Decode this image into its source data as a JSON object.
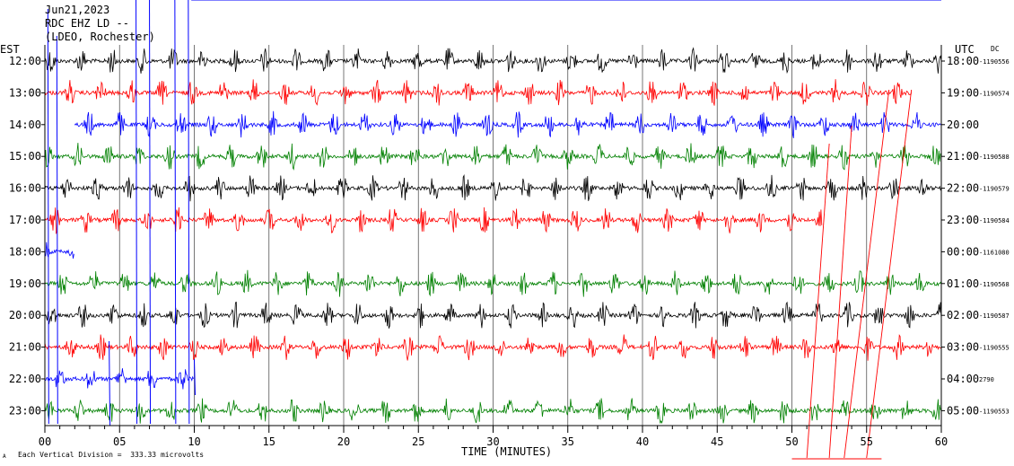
{
  "header": {
    "date": "Jun21,2023",
    "station": "RDC EHZ LD --",
    "network": "(LDEO, Rochester)"
  },
  "left_axis_title": "EST",
  "right_axis_title": "UTC",
  "dc_label": "DC",
  "footer": {
    "scale_note": "Each Vertical Division =  333.33 microvolts",
    "corner_mark": "A"
  },
  "chart_data": {
    "type": "line",
    "title": "",
    "xlabel": "TIME (MINUTES)",
    "ylabel": "",
    "xlim": [
      0,
      60
    ],
    "x_ticks": [
      "00",
      "05",
      "10",
      "15",
      "20",
      "25",
      "30",
      "35",
      "40",
      "45",
      "50",
      "55",
      "60"
    ],
    "grid": true,
    "series": [
      {
        "est": "12:00",
        "utc": "18:00",
        "dc": "-1190556",
        "color": "#000000",
        "data_start_min": 0,
        "data_end_min": 60
      },
      {
        "est": "13:00",
        "utc": "19:00",
        "dc": "-1190574",
        "color": "#ff0000",
        "data_start_min": 0,
        "data_end_min": 58
      },
      {
        "est": "14:00",
        "utc": "20:00",
        "dc": "",
        "color": "#0000ff",
        "data_start_min": 2,
        "data_end_min": 60
      },
      {
        "est": "15:00",
        "utc": "21:00",
        "dc": "-1190588",
        "color": "#008000",
        "data_start_min": 0,
        "data_end_min": 60
      },
      {
        "est": "16:00",
        "utc": "22:00",
        "dc": "-1190579",
        "color": "#000000",
        "data_start_min": 0,
        "data_end_min": 60
      },
      {
        "est": "17:00",
        "utc": "23:00",
        "dc": "-1190584",
        "color": "#ff0000",
        "data_start_min": 0,
        "data_end_min": 52
      },
      {
        "est": "18:00",
        "utc": "00:00",
        "dc": "-1161080",
        "color": "#0000ff",
        "data_start_min": 0,
        "data_end_min": 2
      },
      {
        "est": "19:00",
        "utc": "01:00",
        "dc": "-1190568",
        "color": "#008000",
        "data_start_min": 0,
        "data_end_min": 60
      },
      {
        "est": "20:00",
        "utc": "02:00",
        "dc": "-1190587",
        "color": "#000000",
        "data_start_min": 0,
        "data_end_min": 60
      },
      {
        "est": "21:00",
        "utc": "03:00",
        "dc": "-1190555",
        "color": "#ff0000",
        "data_start_min": 0,
        "data_end_min": 60
      },
      {
        "est": "22:00",
        "utc": "04:00",
        "dc": "2790",
        "color": "#0000ff",
        "data_start_min": 0,
        "data_end_min": 10
      },
      {
        "est": "23:00",
        "utc": "05:00",
        "dc": "-1190553",
        "color": "#008000",
        "data_start_min": 0,
        "data_end_min": 60
      }
    ]
  }
}
